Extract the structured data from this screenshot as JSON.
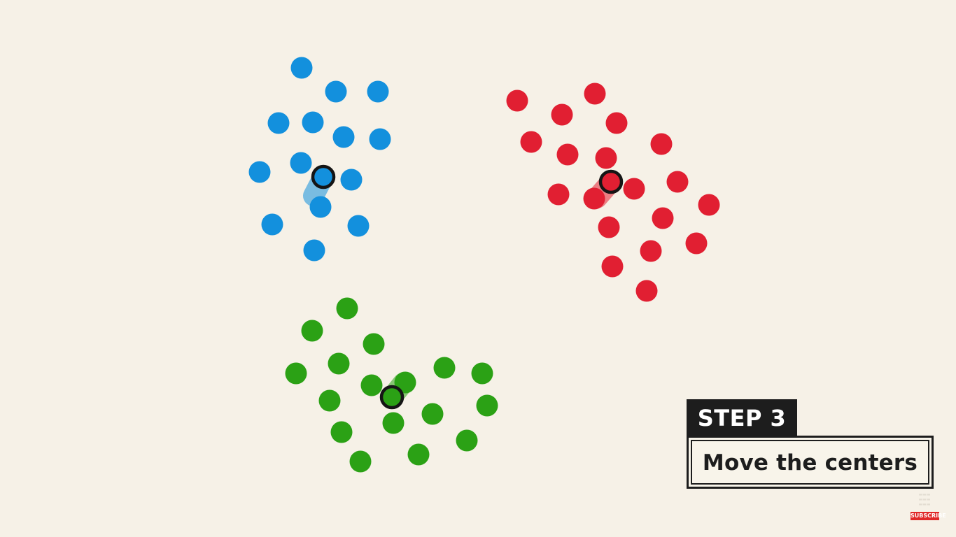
{
  "colors": {
    "background": "#f6f1e7",
    "blue": "#1390dd",
    "red": "#e11f32",
    "green": "#2ba115",
    "center_ring": "#151515"
  },
  "step": {
    "tag": "STEP 3",
    "caption": "Move the centers"
  },
  "subscribe": {
    "label": "SUBSCRIBE"
  }
}
